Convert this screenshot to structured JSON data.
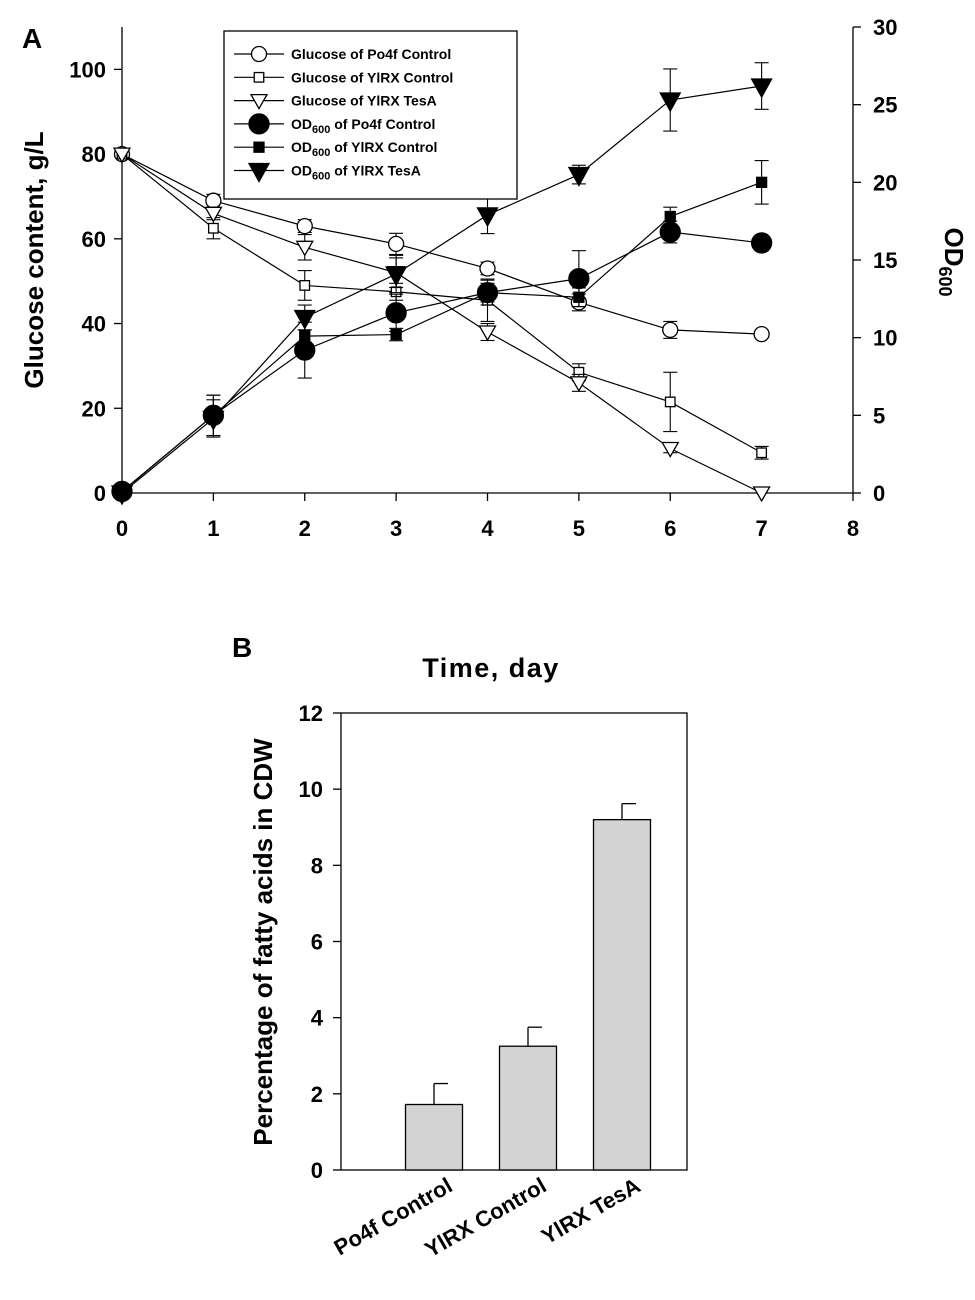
{
  "chart_data": [
    {
      "panel": "A",
      "type": "line",
      "x": [
        0,
        1,
        2,
        3,
        4,
        5,
        6,
        7
      ],
      "xlim": [
        0,
        8
      ],
      "x_ticks": [
        "0",
        "1",
        "2",
        "3",
        "4",
        "5",
        "6",
        "7",
        "8"
      ],
      "ylabel": "Glucose content, g/L",
      "ylim": [
        0,
        110
      ],
      "y_ticks": [
        "0",
        "20",
        "40",
        "60",
        "80",
        "100"
      ],
      "y2label_main": "OD",
      "y2label_sub": "600",
      "y2lim": [
        0,
        30
      ],
      "y2_ticks": [
        "0",
        "5",
        "10",
        "15",
        "20",
        "25",
        "30"
      ],
      "series": [
        {
          "name": "Glucose of Po4f Control",
          "axis": "left",
          "marker": "circle-open",
          "values": [
            80,
            69,
            63,
            58.8,
            53,
            45,
            38.5,
            37.5
          ],
          "errors": [
            0,
            1.5,
            1.5,
            2.5,
            1.5,
            2,
            2,
            0.8
          ]
        },
        {
          "name": "Glucose of YlRX Control",
          "axis": "left",
          "marker": "square-open",
          "values": [
            80,
            62.5,
            49,
            47.5,
            45.5,
            28.5,
            21.5,
            9.5
          ],
          "errors": [
            0,
            2.5,
            3.5,
            2,
            5,
            2,
            7,
            1.5
          ]
        },
        {
          "name": "Glucose of YlRX TesA",
          "axis": "left",
          "marker": "triangle-open",
          "values": [
            80,
            66,
            58,
            52,
            38,
            26,
            10.5,
            0
          ],
          "errors": [
            0,
            1.5,
            3,
            3.5,
            2,
            2,
            1,
            0
          ]
        },
        {
          "name": "OD600 of Po4f Control",
          "axis": "right",
          "marker": "circle-filled",
          "values": [
            0.1,
            5,
            9.2,
            11.6,
            12.9,
            13.8,
            16.8,
            16.1
          ],
          "errors": [
            0,
            1.3,
            1.8,
            1.2,
            0.8,
            1.8,
            0.7,
            0.5
          ]
        },
        {
          "name": "OD600 of YlRX Control",
          "axis": "right",
          "marker": "square-filled",
          "values": [
            0.1,
            5,
            10.1,
            10.2,
            12.9,
            12.6,
            17.8,
            20
          ],
          "errors": [
            0,
            1.3,
            0.4,
            0.4,
            0.6,
            0.6,
            0.6,
            1.4
          ]
        },
        {
          "name": "OD600 of YlRX TesA",
          "axis": "right",
          "marker": "triangle-filled",
          "values": [
            0,
            4.8,
            11.3,
            14.1,
            17.9,
            20.5,
            25.3,
            26.2
          ],
          "errors": [
            0,
            1.2,
            0.8,
            1.2,
            1.2,
            0.6,
            2,
            1.5
          ]
        }
      ],
      "legend": {
        "entries": [
          {
            "prefix": "Glucose of Po4f Control",
            "sub": "",
            "suffix": ""
          },
          {
            "prefix": "Glucose of YlRX Control",
            "sub": "",
            "suffix": ""
          },
          {
            "prefix": "Glucose of YlRX TesA",
            "sub": "",
            "suffix": ""
          },
          {
            "prefix": "OD",
            "sub": "600",
            "suffix": " of Po4f Control"
          },
          {
            "prefix": "OD",
            "sub": "600",
            "suffix": " of YlRX Control"
          },
          {
            "prefix": "OD",
            "sub": "600",
            "suffix": " of YlRX TesA"
          }
        ]
      }
    },
    {
      "panel": "B",
      "type": "bar",
      "title": "Time, day",
      "categories": [
        "Po4f Control",
        "YlRX Control",
        "YlRX TesA"
      ],
      "values": [
        1.72,
        3.25,
        9.2
      ],
      "errors": [
        0.55,
        0.5,
        0.42
      ],
      "ylabel": "Percentage of fatty acids in CDW",
      "ylim": [
        0,
        12
      ],
      "y_ticks": [
        "0",
        "2",
        "4",
        "6",
        "8",
        "10",
        "12"
      ],
      "bar_color": "#d3d3d3"
    }
  ]
}
